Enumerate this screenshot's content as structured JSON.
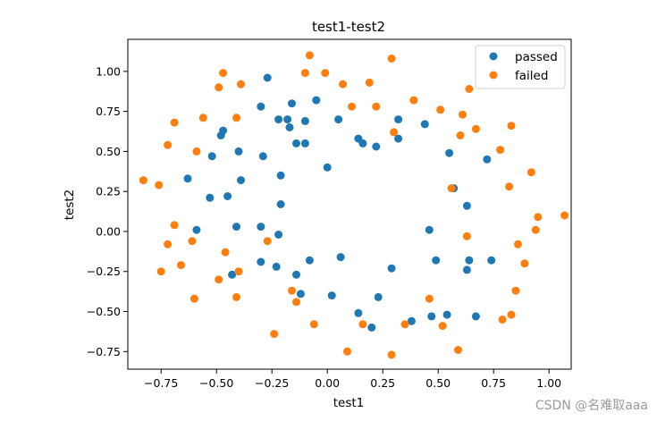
{
  "watermark": "CSDN @名难取aaa",
  "chart_data": {
    "type": "scatter",
    "title": "test1-test2",
    "xlabel": "test1",
    "ylabel": "test2",
    "xlim": [
      -0.9,
      1.1
    ],
    "ylim": [
      -0.86,
      1.2
    ],
    "xticks": [
      -0.75,
      -0.5,
      -0.25,
      0.0,
      0.25,
      0.5,
      0.75,
      1.0
    ],
    "xtick_labels": [
      "−0.75",
      "−0.50",
      "−0.25",
      "0.00",
      "0.25",
      "0.50",
      "0.75",
      "1.00"
    ],
    "yticks": [
      -0.75,
      -0.5,
      -0.25,
      0.0,
      0.25,
      0.5,
      0.75,
      1.0
    ],
    "ytick_labels": [
      "−0.75",
      "−0.50",
      "−0.25",
      "0.00",
      "0.25",
      "0.50",
      "0.75",
      "1.00"
    ],
    "grid": false,
    "legend_position": "top-right",
    "series": [
      {
        "name": "passed",
        "color": "#1f77b4",
        "points": [
          [
            -0.27,
            0.96
          ],
          [
            -0.3,
            0.78
          ],
          [
            -0.22,
            0.7
          ],
          [
            -0.18,
            0.7
          ],
          [
            -0.17,
            0.65
          ],
          [
            -0.16,
            0.8
          ],
          [
            -0.1,
            0.69
          ],
          [
            -0.05,
            0.82
          ],
          [
            0.05,
            0.7
          ],
          [
            -0.48,
            0.6
          ],
          [
            -0.47,
            0.63
          ],
          [
            -0.14,
            0.55
          ],
          [
            -0.1,
            0.55
          ],
          [
            0.14,
            0.58
          ],
          [
            0.16,
            0.55
          ],
          [
            0.22,
            0.53
          ],
          [
            0.32,
            0.7
          ],
          [
            0.32,
            0.58
          ],
          [
            0.44,
            0.67
          ],
          [
            -0.52,
            0.47
          ],
          [
            -0.4,
            0.5
          ],
          [
            -0.29,
            0.47
          ],
          [
            -0.21,
            0.35
          ],
          [
            -0.63,
            0.33
          ],
          [
            -0.39,
            0.32
          ],
          [
            0.0,
            0.4
          ],
          [
            0.55,
            0.49
          ],
          [
            0.72,
            0.45
          ],
          [
            0.57,
            0.27
          ],
          [
            -0.53,
            0.21
          ],
          [
            -0.45,
            0.22
          ],
          [
            -0.21,
            0.17
          ],
          [
            0.63,
            0.16
          ],
          [
            -0.59,
            0.01
          ],
          [
            -0.41,
            0.03
          ],
          [
            -0.3,
            0.03
          ],
          [
            -0.22,
            -0.02
          ],
          [
            0.46,
            0.01
          ],
          [
            -0.3,
            -0.19
          ],
          [
            -0.23,
            -0.22
          ],
          [
            -0.08,
            -0.18
          ],
          [
            0.06,
            -0.16
          ],
          [
            0.29,
            -0.23
          ],
          [
            0.49,
            -0.18
          ],
          [
            0.64,
            -0.18
          ],
          [
            0.74,
            -0.18
          ],
          [
            -0.43,
            -0.27
          ],
          [
            -0.14,
            -0.27
          ],
          [
            0.63,
            -0.24
          ],
          [
            -0.12,
            -0.39
          ],
          [
            0.02,
            -0.4
          ],
          [
            0.23,
            -0.41
          ],
          [
            0.14,
            -0.51
          ],
          [
            0.2,
            -0.6
          ],
          [
            0.38,
            -0.56
          ],
          [
            0.47,
            -0.53
          ],
          [
            0.54,
            -0.52
          ],
          [
            0.67,
            -0.53
          ]
        ]
      },
      {
        "name": "failed",
        "color": "#ff7f0e",
        "points": [
          [
            -0.08,
            1.1
          ],
          [
            -0.47,
            0.99
          ],
          [
            -0.49,
            0.9
          ],
          [
            -0.39,
            0.92
          ],
          [
            -0.1,
            0.99
          ],
          [
            -0.01,
            0.99
          ],
          [
            0.07,
            0.92
          ],
          [
            0.19,
            0.93
          ],
          [
            0.29,
            1.08
          ],
          [
            -0.69,
            0.68
          ],
          [
            -0.56,
            0.71
          ],
          [
            -0.41,
            0.71
          ],
          [
            0.11,
            0.78
          ],
          [
            0.22,
            0.78
          ],
          [
            0.39,
            0.82
          ],
          [
            0.51,
            0.76
          ],
          [
            0.61,
            0.73
          ],
          [
            0.64,
            0.89
          ],
          [
            0.67,
            0.64
          ],
          [
            0.3,
            0.62
          ],
          [
            0.6,
            0.6
          ],
          [
            0.83,
            0.66
          ],
          [
            -0.72,
            0.54
          ],
          [
            -0.59,
            0.5
          ],
          [
            0.78,
            0.51
          ],
          [
            -0.83,
            0.32
          ],
          [
            -0.76,
            0.29
          ],
          [
            0.56,
            0.27
          ],
          [
            0.82,
            0.28
          ],
          [
            0.92,
            0.37
          ],
          [
            -0.69,
            0.04
          ],
          [
            -0.61,
            -0.06
          ],
          [
            -0.72,
            -0.08
          ],
          [
            -0.27,
            -0.06
          ],
          [
            0.63,
            -0.03
          ],
          [
            0.86,
            -0.08
          ],
          [
            0.95,
            0.09
          ],
          [
            0.94,
            0.01
          ],
          [
            1.07,
            0.1
          ],
          [
            -0.66,
            -0.21
          ],
          [
            -0.75,
            -0.25
          ],
          [
            -0.46,
            -0.13
          ],
          [
            -0.4,
            -0.25
          ],
          [
            0.89,
            -0.2
          ],
          [
            -0.49,
            -0.3
          ],
          [
            -0.16,
            -0.37
          ],
          [
            -0.14,
            -0.44
          ],
          [
            -0.6,
            -0.42
          ],
          [
            -0.41,
            -0.41
          ],
          [
            0.46,
            -0.42
          ],
          [
            0.85,
            -0.37
          ],
          [
            -0.06,
            -0.58
          ],
          [
            0.16,
            -0.58
          ],
          [
            0.35,
            -0.58
          ],
          [
            0.52,
            -0.59
          ],
          [
            0.79,
            -0.55
          ],
          [
            0.83,
            -0.52
          ],
          [
            -0.24,
            -0.64
          ],
          [
            0.09,
            -0.75
          ],
          [
            0.29,
            -0.77
          ],
          [
            0.59,
            -0.74
          ]
        ]
      }
    ]
  }
}
